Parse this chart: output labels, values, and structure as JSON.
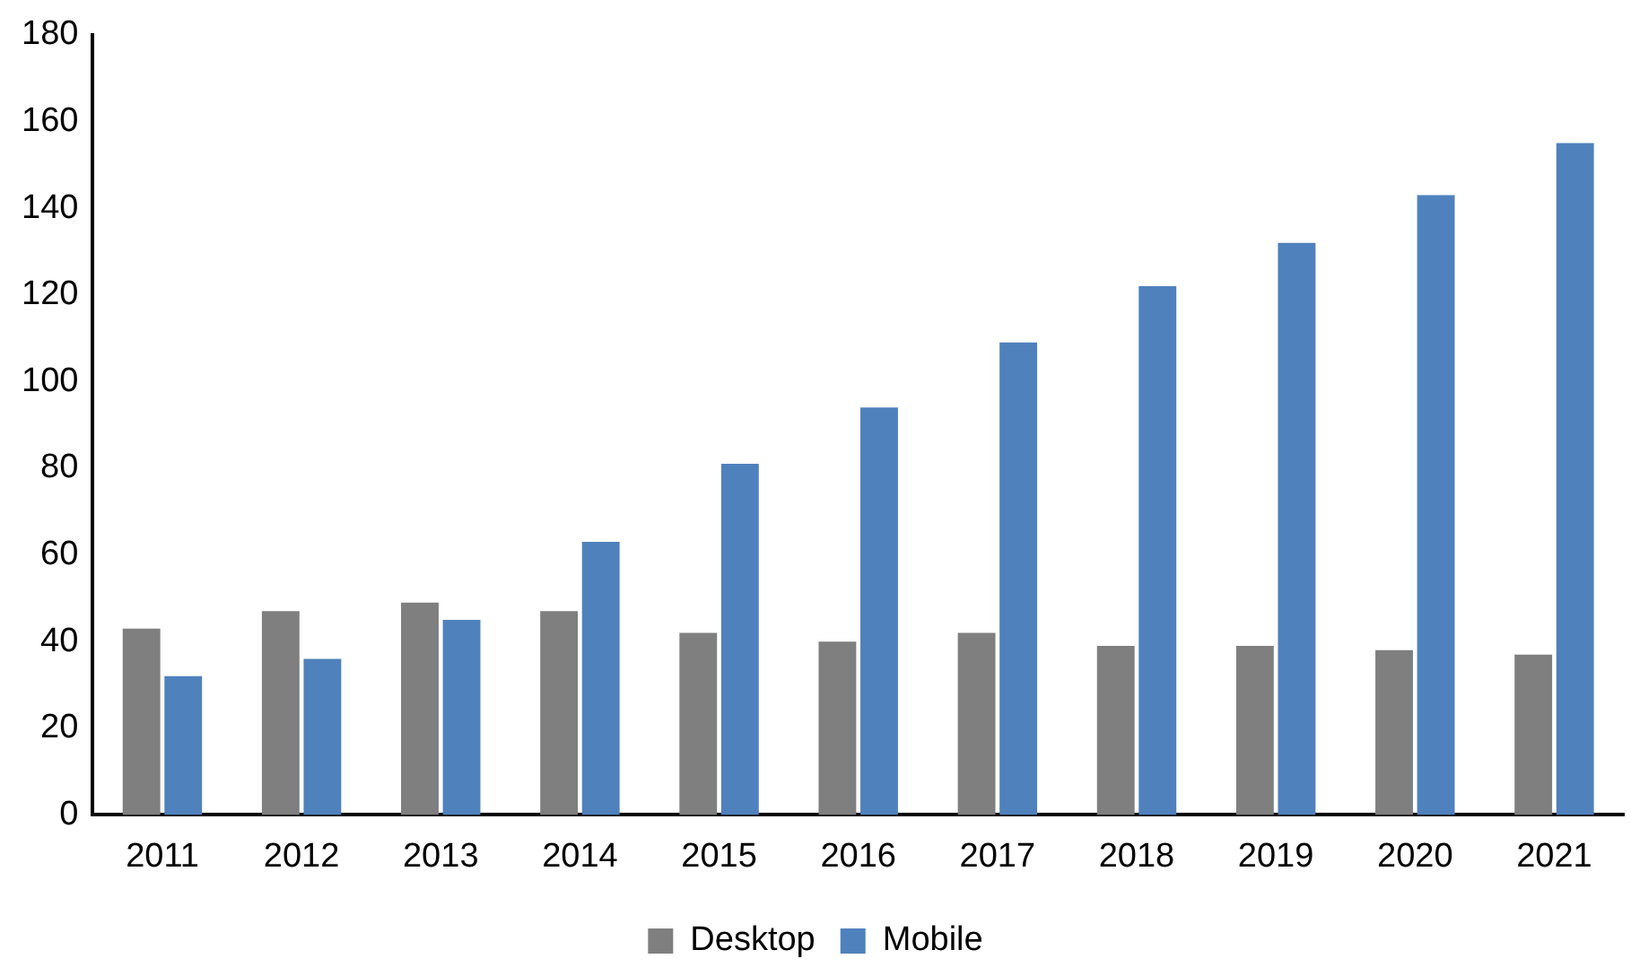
{
  "chart_data": {
    "type": "bar",
    "categories": [
      "2011",
      "2012",
      "2013",
      "2014",
      "2015",
      "2016",
      "2017",
      "2018",
      "2019",
      "2020",
      "2021"
    ],
    "series": [
      {
        "name": "Desktop",
        "color": "#7f7f7f",
        "values": [
          43,
          47,
          49,
          47,
          42,
          40,
          42,
          39,
          39,
          38,
          37
        ]
      },
      {
        "name": "Mobile",
        "color": "#4f81bd",
        "values": [
          32,
          36,
          45,
          63,
          81,
          94,
          109,
          122,
          132,
          143,
          155
        ]
      }
    ],
    "ylim": [
      0,
      180
    ],
    "yticks": [
      0,
      20,
      40,
      60,
      80,
      100,
      120,
      140,
      160,
      180
    ],
    "grid": false,
    "legend": "bottom"
  }
}
